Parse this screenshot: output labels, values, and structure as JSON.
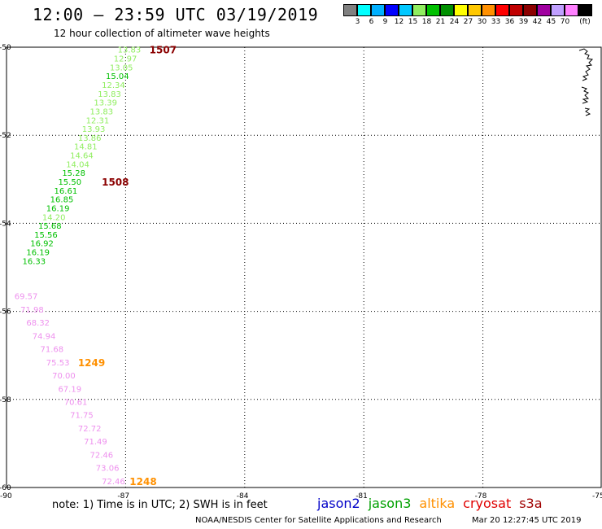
{
  "title": "12:00 – 23:59 UTC 03/19/2019",
  "subtitle": "12 hour collection of altimeter wave heights",
  "legend": {
    "unit": "(ft)",
    "colors": [
      "#808080",
      "#00ffff",
      "#00b0ff",
      "#0000ff",
      "#00c8ff",
      "#90ee60",
      "#00c000",
      "#009000",
      "#ffff00",
      "#ffc800",
      "#ff9000",
      "#ff0000",
      "#c00000",
      "#8b0000",
      "#a000a0",
      "#c0a0ff",
      "#ff80ff",
      "#000000"
    ],
    "labels": [
      "3",
      "6",
      "9",
      "12",
      "15",
      "18",
      "21",
      "24",
      "27",
      "30",
      "33",
      "36",
      "39",
      "42",
      "45",
      "70"
    ]
  },
  "axes": {
    "x_ticks": [
      "-90",
      "-87",
      "-84",
      "-81",
      "-78",
      "-75"
    ],
    "y_ticks": [
      "-50",
      "-52",
      "-54",
      "-56",
      "-58",
      "-60"
    ]
  },
  "chart_data": {
    "type": "scatter",
    "xlim": [
      -90,
      -75
    ],
    "ylim": [
      -60,
      -50
    ],
    "grid": true,
    "tracks": [
      {
        "name": "",
        "color_scale": "swh",
        "points": [
          {
            "lon": -87.2,
            "lat": -50.05,
            "value": "13.83",
            "color": "#90ee60"
          },
          {
            "lon": -87.3,
            "lat": -50.25,
            "value": "12.97",
            "color": "#90ee60"
          },
          {
            "lon": -87.4,
            "lat": -50.45,
            "value": "13.05",
            "color": "#90ee60"
          },
          {
            "lon": -87.5,
            "lat": -50.65,
            "value": "15.04",
            "color": "#00c000"
          },
          {
            "lon": -87.6,
            "lat": -50.85,
            "value": "12.34",
            "color": "#90ee60"
          },
          {
            "lon": -87.7,
            "lat": -51.05,
            "value": "13.83",
            "color": "#90ee60"
          },
          {
            "lon": -87.8,
            "lat": -51.25,
            "value": "13.39",
            "color": "#90ee60"
          },
          {
            "lon": -87.9,
            "lat": -51.45,
            "value": "13.83",
            "color": "#90ee60"
          },
          {
            "lon": -88.0,
            "lat": -51.65,
            "value": "12.31",
            "color": "#90ee60"
          },
          {
            "lon": -88.1,
            "lat": -51.85,
            "value": "13.93",
            "color": "#90ee60"
          },
          {
            "lon": -88.2,
            "lat": -52.05,
            "value": "13.86",
            "color": "#90ee60"
          },
          {
            "lon": -88.3,
            "lat": -52.25,
            "value": "14.81",
            "color": "#90ee60"
          },
          {
            "lon": -88.4,
            "lat": -52.45,
            "value": "14.64",
            "color": "#90ee60"
          },
          {
            "lon": -88.5,
            "lat": -52.65,
            "value": "14.04",
            "color": "#90ee60"
          },
          {
            "lon": -88.6,
            "lat": -52.85,
            "value": "15.28",
            "color": "#00c000"
          },
          {
            "lon": -88.7,
            "lat": -53.05,
            "value": "15.50",
            "color": "#00c000"
          },
          {
            "lon": -88.8,
            "lat": -53.25,
            "value": "16.61",
            "color": "#00c000"
          },
          {
            "lon": -88.9,
            "lat": -53.45,
            "value": "16.85",
            "color": "#00c000"
          },
          {
            "lon": -89.0,
            "lat": -53.65,
            "value": "16.19",
            "color": "#00c000"
          },
          {
            "lon": -89.1,
            "lat": -53.85,
            "value": "14.20",
            "color": "#90ee60"
          },
          {
            "lon": -89.2,
            "lat": -54.05,
            "value": "15.68",
            "color": "#00c000"
          },
          {
            "lon": -89.3,
            "lat": -54.25,
            "value": "15.56",
            "color": "#00c000"
          },
          {
            "lon": -89.4,
            "lat": -54.45,
            "value": "16.92",
            "color": "#00c000"
          },
          {
            "lon": -89.5,
            "lat": -54.65,
            "value": "16.19",
            "color": "#00c000"
          },
          {
            "lon": -89.6,
            "lat": -54.85,
            "value": "16.33",
            "color": "#00c000"
          }
        ],
        "time_labels": [
          {
            "lon": -86.4,
            "lat": -50.05,
            "text": "1507",
            "color": "#8b0000"
          },
          {
            "lon": -87.6,
            "lat": -53.05,
            "text": "1508",
            "color": "#8b0000"
          }
        ]
      },
      {
        "name": "",
        "color_scale": "swh",
        "points": [
          {
            "lon": -89.8,
            "lat": -55.65,
            "value": "69.57",
            "color": "#ee90ee"
          },
          {
            "lon": -89.65,
            "lat": -55.95,
            "value": "71.98",
            "color": "#ee90ee"
          },
          {
            "lon": -89.5,
            "lat": -56.25,
            "value": "68.32",
            "color": "#ee90ee"
          },
          {
            "lon": -89.35,
            "lat": -56.55,
            "value": "74.94",
            "color": "#ee90ee"
          },
          {
            "lon": -89.15,
            "lat": -56.85,
            "value": "71.68",
            "color": "#ee90ee"
          },
          {
            "lon": -89.0,
            "lat": -57.15,
            "value": "75.53",
            "color": "#ee90ee"
          },
          {
            "lon": -88.85,
            "lat": -57.45,
            "value": "70.00",
            "color": "#ee90ee"
          },
          {
            "lon": -88.7,
            "lat": -57.75,
            "value": "67.19",
            "color": "#ee90ee"
          },
          {
            "lon": -88.55,
            "lat": -58.05,
            "value": "70.61",
            "color": "#ee90ee"
          },
          {
            "lon": -88.4,
            "lat": -58.35,
            "value": "71.75",
            "color": "#ee90ee"
          },
          {
            "lon": -88.2,
            "lat": -58.65,
            "value": "72.72",
            "color": "#ee90ee"
          },
          {
            "lon": -88.05,
            "lat": -58.95,
            "value": "71.49",
            "color": "#ee90ee"
          },
          {
            "lon": -87.9,
            "lat": -59.25,
            "value": "72.46",
            "color": "#ee90ee"
          },
          {
            "lon": -87.75,
            "lat": -59.55,
            "value": "73.06",
            "color": "#ee90ee"
          },
          {
            "lon": -87.6,
            "lat": -59.85,
            "value": "72.46",
            "color": "#ee90ee"
          }
        ],
        "time_labels": [
          {
            "lon": -88.2,
            "lat": -57.15,
            "text": "1249",
            "color": "#ff9000"
          },
          {
            "lon": -86.9,
            "lat": -59.85,
            "text": "1248",
            "color": "#ff9000"
          }
        ]
      }
    ]
  },
  "note": "note:  1) Time is in UTC;  2) SWH is in feet",
  "satellites": [
    {
      "name": "jason2",
      "color": "#0000c8"
    },
    {
      "name": "jason3",
      "color": "#00a000"
    },
    {
      "name": "altika",
      "color": "#ff9000"
    },
    {
      "name": "cryosat",
      "color": "#e00000"
    },
    {
      "name": "s3a",
      "color": "#a00000"
    }
  ],
  "credit": "NOAA/NESDIS Center for Satellite Applications and Research",
  "timestamp": "Mar 20 12:27:45 UTC 2019"
}
